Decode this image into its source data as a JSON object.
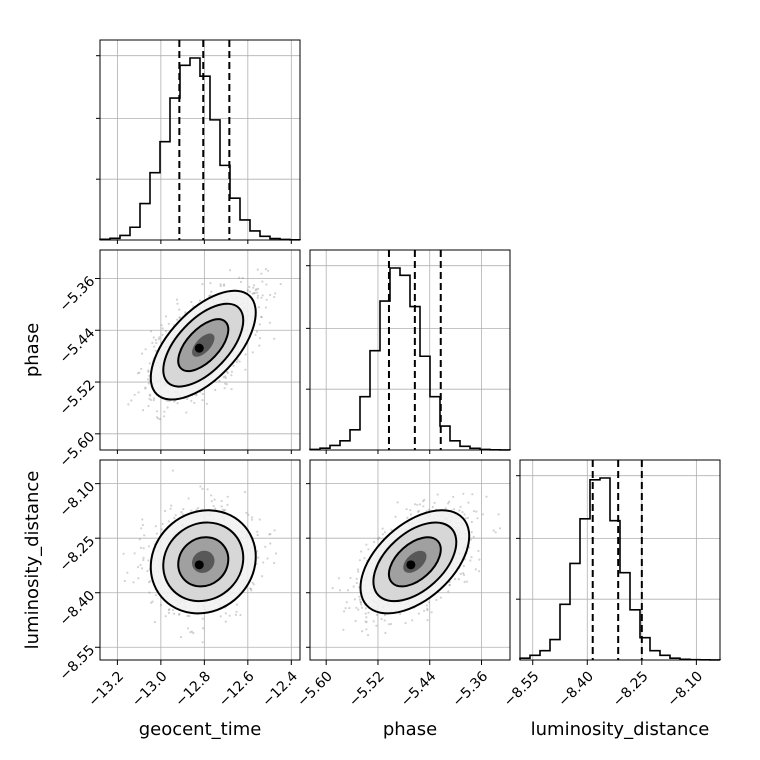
{
  "chart_data": {
    "type": "corner",
    "parameters": [
      "geocent_time",
      "phase",
      "luminosity_distance"
    ],
    "axis_labels": [
      "geocent_time",
      "phase",
      "luminosity_distance"
    ],
    "ranges": {
      "geocent_time": [
        -13.28,
        -12.36
      ],
      "phase": [
        -5.625,
        -5.316
      ],
      "luminosity_distance": [
        -8.585,
        -8.035
      ]
    },
    "ticks": {
      "geocent_time": [
        -13.2,
        -13.0,
        -12.8,
        -12.6,
        -12.4
      ],
      "phase": [
        -5.6,
        -5.52,
        -5.44,
        -5.36
      ],
      "luminosity_distance": [
        -8.55,
        -8.4,
        -8.25,
        -8.1
      ]
    },
    "tick_labels": {
      "geocent_time": [
        "−13.2",
        "−13.0",
        "−12.8",
        "−12.6",
        "−12.4"
      ],
      "phase": [
        "−5.60",
        "−5.52",
        "−5.44",
        "−5.36"
      ],
      "luminosity_distance": [
        "−8.55",
        "−8.40",
        "−8.25",
        "−8.10"
      ]
    },
    "quantiles": {
      "geocent_time": [
        -12.915,
        -12.805,
        -12.685
      ],
      "phase": [
        -5.503,
        -5.463,
        -5.423
      ],
      "luminosity_distance": [
        -8.385,
        -8.315,
        -8.25
      ]
    },
    "histograms": {
      "geocent_time": [
        0.004,
        0.009,
        0.025,
        0.07,
        0.2,
        0.37,
        0.54,
        0.78,
        0.96,
        1.0,
        0.9,
        0.66,
        0.41,
        0.23,
        0.11,
        0.05,
        0.02,
        0.008,
        0.003,
        0.001
      ],
      "phase": [
        0.003,
        0.01,
        0.025,
        0.05,
        0.11,
        0.29,
        0.54,
        0.81,
        0.99,
        0.95,
        0.78,
        0.51,
        0.29,
        0.13,
        0.05,
        0.02,
        0.009,
        0.003,
        0.001,
        0.0005
      ],
      "luminosity_distance": [
        0.01,
        0.025,
        0.05,
        0.11,
        0.3,
        0.52,
        0.76,
        0.97,
        0.98,
        0.75,
        0.47,
        0.27,
        0.12,
        0.05,
        0.025,
        0.01,
        0.004,
        0.002,
        0.001,
        0.0005
      ]
    },
    "pair_correlations": {
      "phase|geocent_time": 0.6,
      "luminosity_distance|geocent_time": 0.1,
      "luminosity_distance|phase": 0.5
    },
    "grid": true,
    "colors": {
      "line": "#000000",
      "points": "#7f7f7f",
      "grid": "#b0b0b0"
    }
  }
}
